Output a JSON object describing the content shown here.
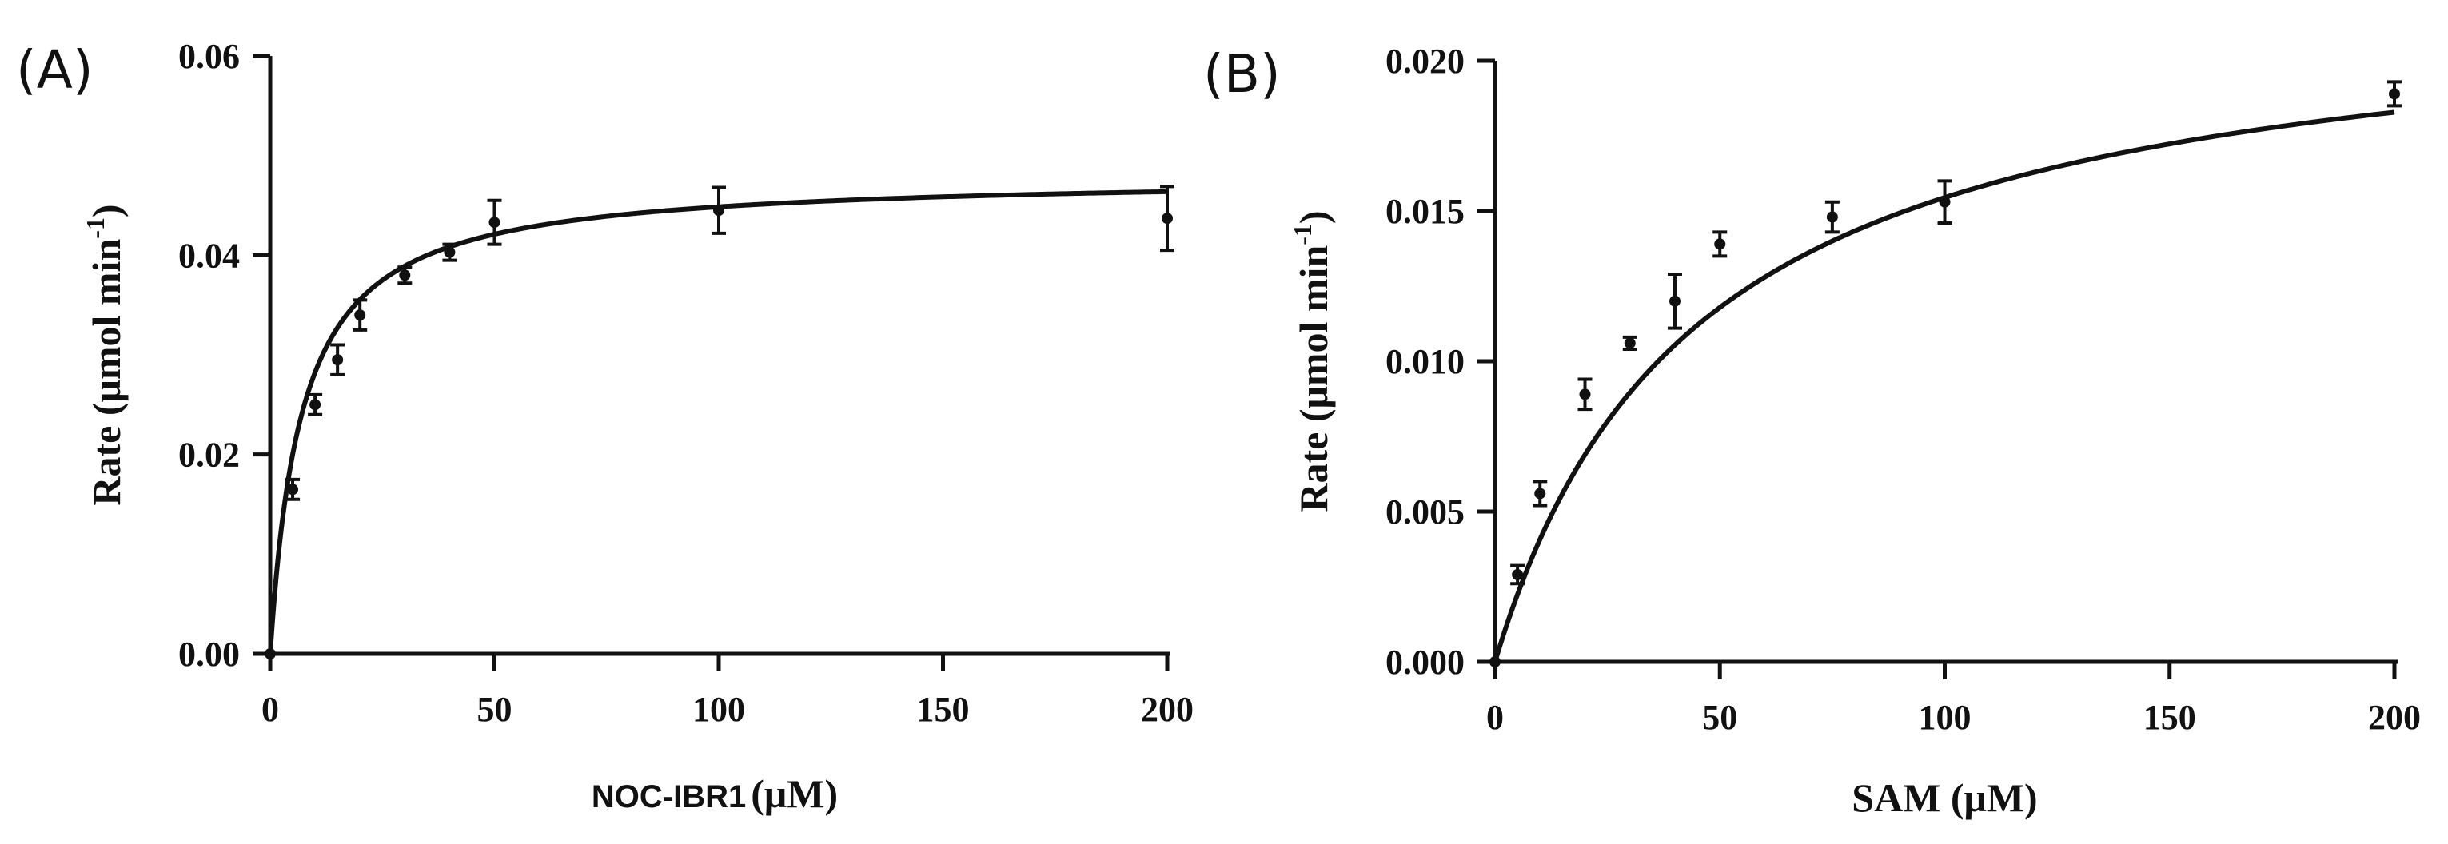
{
  "chart_data": [
    {
      "type": "scatter",
      "panel_label": "(A)",
      "xlabel": "NOC-IBR1",
      "xlabel_unit": "(μM)",
      "ylabel": "Rate (μmol min",
      "ylabel_sup": "-1",
      "ylabel_close": ")",
      "xlim": [
        0,
        200
      ],
      "ylim": [
        0,
        0.06
      ],
      "x_ticks": [
        0,
        50,
        100,
        150,
        200
      ],
      "x_tick_labels": [
        "0",
        "50",
        "100",
        "150",
        "200"
      ],
      "y_ticks": [
        0,
        0.02,
        0.04,
        0.06
      ],
      "y_tick_labels": [
        "0.00",
        "0.02",
        "0.04",
        "0.06"
      ],
      "grid": false,
      "legend": "none",
      "fit": {
        "model": "Michaelis-Menten",
        "vmax": 0.048,
        "km": 7.0
      },
      "points": [
        {
          "x": 0,
          "y": 0.0,
          "err": 0.0
        },
        {
          "x": 5,
          "y": 0.0165,
          "err": 0.001
        },
        {
          "x": 10,
          "y": 0.025,
          "err": 0.001
        },
        {
          "x": 15,
          "y": 0.0295,
          "err": 0.0015
        },
        {
          "x": 20,
          "y": 0.034,
          "err": 0.0015
        },
        {
          "x": 30,
          "y": 0.038,
          "err": 0.0008
        },
        {
          "x": 40,
          "y": 0.0403,
          "err": 0.0008
        },
        {
          "x": 50,
          "y": 0.0433,
          "err": 0.0022
        },
        {
          "x": 100,
          "y": 0.0445,
          "err": 0.0023
        },
        {
          "x": 200,
          "y": 0.0437,
          "err": 0.0032
        }
      ]
    },
    {
      "type": "scatter",
      "panel_label": "(B)",
      "xlabel": "SAM (μM)",
      "ylabel": "Rate (μmol min",
      "ylabel_sup": "-1",
      "ylabel_close": ")",
      "xlim": [
        0,
        200
      ],
      "ylim": [
        0,
        0.02
      ],
      "x_ticks": [
        0,
        50,
        100,
        150,
        200
      ],
      "x_tick_labels": [
        "0",
        "50",
        "100",
        "150",
        "200"
      ],
      "y_ticks": [
        0,
        0.005,
        0.01,
        0.015,
        0.02
      ],
      "y_tick_labels": [
        "0.000",
        "0.005",
        "0.010",
        "0.015",
        "0.020"
      ],
      "grid": false,
      "legend": "none",
      "fit": {
        "model": "Michaelis-Menten",
        "vmax": 0.0224,
        "km": 45.0
      },
      "points": [
        {
          "x": 0,
          "y": 0.0,
          "err": 0.0
        },
        {
          "x": 5,
          "y": 0.0029,
          "err": 0.0003
        },
        {
          "x": 10,
          "y": 0.0056,
          "err": 0.0004
        },
        {
          "x": 20,
          "y": 0.0089,
          "err": 0.0005
        },
        {
          "x": 30,
          "y": 0.0106,
          "err": 0.0002
        },
        {
          "x": 40,
          "y": 0.012,
          "err": 0.0009
        },
        {
          "x": 50,
          "y": 0.0139,
          "err": 0.0004
        },
        {
          "x": 75,
          "y": 0.0148,
          "err": 0.0005
        },
        {
          "x": 100,
          "y": 0.0153,
          "err": 0.0007
        },
        {
          "x": 200,
          "y": 0.0189,
          "err": 0.0004
        }
      ]
    }
  ]
}
